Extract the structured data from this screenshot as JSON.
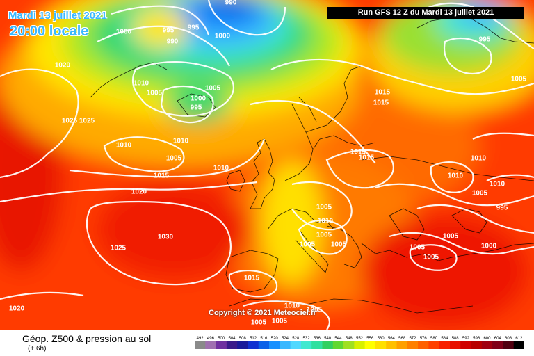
{
  "header": {
    "date_label": "Mardi 13 juillet 2021",
    "time_label": "20:00 locale",
    "run_label": "Run GFS 12 Z du Mardi 13 juillet 2021"
  },
  "map": {
    "copyright": "Copyright © 2021 Meteociel.fr",
    "pressure_labels": [
      {
        "text": "990"
      },
      {
        "text": "995"
      },
      {
        "text": "990"
      },
      {
        "text": "995"
      },
      {
        "text": "1000"
      },
      {
        "text": "1000"
      },
      {
        "text": "1020"
      },
      {
        "text": "1010"
      },
      {
        "text": "1005"
      },
      {
        "text": "1005"
      },
      {
        "text": "1000"
      },
      {
        "text": "995"
      },
      {
        "text": "1025"
      },
      {
        "text": "1025"
      },
      {
        "text": "1010"
      },
      {
        "text": "1010"
      },
      {
        "text": "1005"
      },
      {
        "text": "1015"
      },
      {
        "text": "1020"
      },
      {
        "text": "1015"
      },
      {
        "text": "1015"
      },
      {
        "text": "1015"
      },
      {
        "text": "1015"
      },
      {
        "text": "1010"
      },
      {
        "text": "1010"
      },
      {
        "text": "1010"
      },
      {
        "text": "1005"
      },
      {
        "text": "1010"
      },
      {
        "text": "995"
      },
      {
        "text": "1005"
      },
      {
        "text": "1005"
      },
      {
        "text": "1010"
      },
      {
        "text": "1030"
      },
      {
        "text": "1005"
      },
      {
        "text": "1005"
      },
      {
        "text": "1005"
      },
      {
        "text": "1005"
      },
      {
        "text": "1000"
      },
      {
        "text": "1005"
      },
      {
        "text": "1025"
      },
      {
        "text": "1015"
      },
      {
        "text": "1010"
      },
      {
        "text": "1005"
      },
      {
        "text": "1005"
      },
      {
        "text": "1005"
      },
      {
        "text": "1020"
      },
      {
        "text": "995"
      },
      {
        "text": "1005"
      }
    ]
  },
  "legend": {
    "title": "Géop. Z500 & pression au sol",
    "subtitle": "(+ 6h)",
    "ticks": [
      "492",
      "496",
      "500",
      "504",
      "508",
      "512",
      "516",
      "520",
      "524",
      "528",
      "532",
      "536",
      "540",
      "544",
      "548",
      "552",
      "556",
      "560",
      "564",
      "568",
      "572",
      "576",
      "580",
      "584",
      "588",
      "592",
      "596",
      "600",
      "604",
      "608",
      "612"
    ],
    "colors": [
      "#8a8a8a",
      "#a070b0",
      "#7030a0",
      "#3a1a8a",
      "#1a1a9a",
      "#1030d0",
      "#0a60e8",
      "#1890ff",
      "#3ab8ff",
      "#50d8ff",
      "#40e8d0",
      "#30e0a0",
      "#30d060",
      "#60d830",
      "#a0e020",
      "#d8f000",
      "#ffff00",
      "#ffe000",
      "#ffc000",
      "#ffa000",
      "#ff8000",
      "#ff6000",
      "#ff4000",
      "#f82000",
      "#e81000",
      "#d00000",
      "#b80000",
      "#a00010",
      "#800018",
      "#500010",
      "#000000"
    ]
  }
}
